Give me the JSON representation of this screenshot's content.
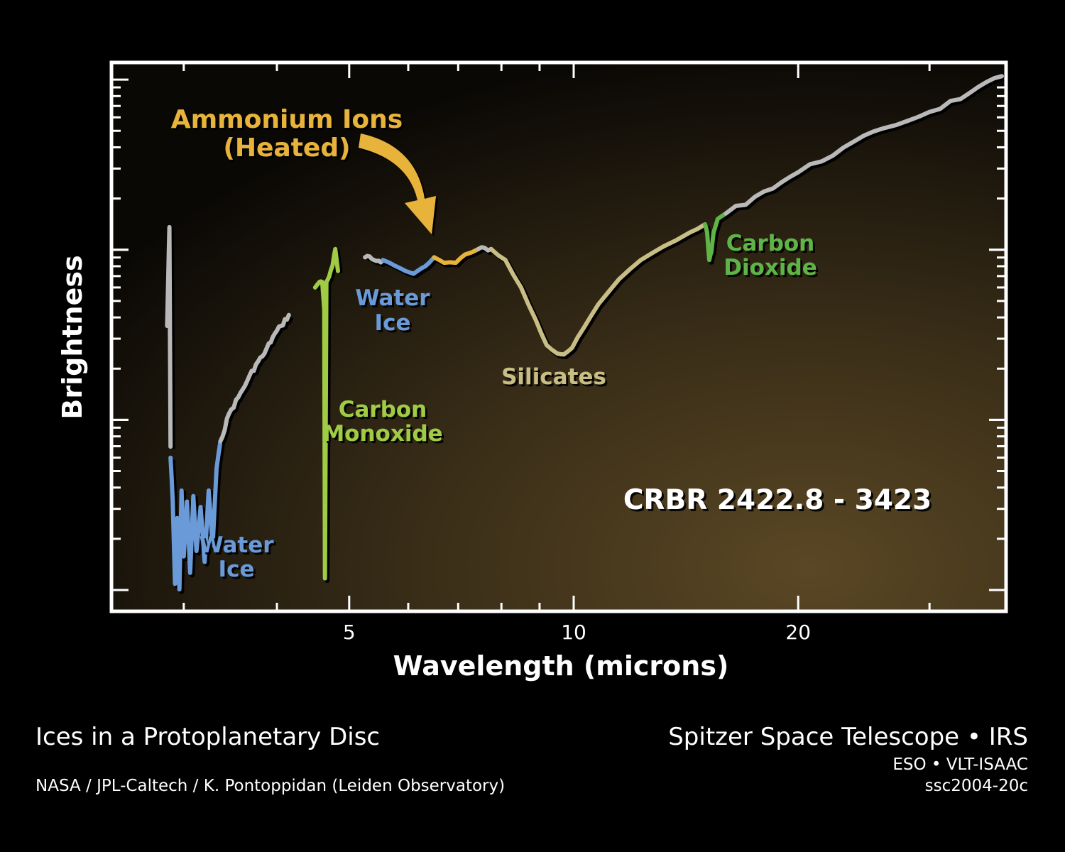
{
  "chart_data": {
    "type": "line",
    "title": "",
    "xlabel": "Wavelength (microns)",
    "ylabel": "Brightness",
    "x_scale": "log",
    "xlim": [
      2.4,
      38
    ],
    "x_ticks": [
      5,
      10,
      20
    ],
    "y_ticks_labeled": false,
    "ylim": [
      0,
      1
    ],
    "grid": false,
    "legend": "none",
    "object_label": "CRBR 2422.8 - 3423",
    "series": [
      {
        "segments": [
          {
            "feature": "continuum",
            "color": "#b9b9b9",
            "points": [
              [
                2.85,
                0.52
              ],
              [
                2.87,
                0.7
              ],
              [
                2.88,
                0.3
              ]
            ]
          },
          {
            "feature": "water_ice",
            "color": "#6a9bd8",
            "points": [
              [
                2.88,
                0.28
              ],
              [
                2.9,
                0.2
              ],
              [
                2.92,
                0.05
              ],
              [
                2.94,
                0.17
              ],
              [
                2.96,
                0.04
              ],
              [
                2.98,
                0.22
              ],
              [
                3.0,
                0.1
              ],
              [
                3.03,
                0.2
              ],
              [
                3.06,
                0.07
              ],
              [
                3.09,
                0.21
              ],
              [
                3.12,
                0.11
              ],
              [
                3.16,
                0.19
              ],
              [
                3.2,
                0.09
              ],
              [
                3.24,
                0.22
              ],
              [
                3.28,
                0.12
              ],
              [
                3.32,
                0.26
              ],
              [
                3.36,
                0.31
              ]
            ]
          },
          {
            "feature": "continuum",
            "color": "#b9b9b9",
            "points": [
              [
                3.36,
                0.31
              ],
              [
                3.45,
                0.36
              ],
              [
                3.55,
                0.39
              ],
              [
                3.65,
                0.42
              ],
              [
                3.75,
                0.45
              ],
              [
                3.85,
                0.47
              ],
              [
                3.95,
                0.5
              ],
              [
                4.05,
                0.52
              ],
              [
                4.15,
                0.54
              ]
            ]
          },
          {
            "feature": "carbon_monoxide",
            "color": "#9fcb45",
            "points": [
              [
                4.5,
                0.59
              ],
              [
                4.56,
                0.6
              ],
              [
                4.6,
                0.6
              ],
              [
                4.63,
                0.55
              ],
              [
                4.64,
                0.06
              ],
              [
                4.66,
                0.6
              ],
              [
                4.7,
                0.61
              ],
              [
                4.75,
                0.63
              ],
              [
                4.79,
                0.66
              ],
              [
                4.83,
                0.62
              ]
            ]
          },
          {
            "feature": "continuum",
            "color": "#b9b9b9",
            "points": [
              [
                5.25,
                0.645
              ],
              [
                5.4,
                0.64
              ],
              [
                5.55,
                0.64
              ]
            ]
          },
          {
            "feature": "water_ice",
            "color": "#6a9bd8",
            "points": [
              [
                5.55,
                0.64
              ],
              [
                5.75,
                0.63
              ],
              [
                5.95,
                0.62
              ],
              [
                6.1,
                0.615
              ],
              [
                6.25,
                0.625
              ],
              [
                6.4,
                0.635
              ],
              [
                6.5,
                0.645
              ]
            ]
          },
          {
            "feature": "ammonium_ions",
            "color": "#e8b33a",
            "points": [
              [
                6.5,
                0.645
              ],
              [
                6.7,
                0.635
              ],
              [
                6.95,
                0.635
              ],
              [
                7.15,
                0.65
              ],
              [
                7.45,
                0.66
              ]
            ]
          },
          {
            "feature": "continuum",
            "color": "#b9b9b9",
            "points": [
              [
                7.45,
                0.66
              ],
              [
                7.75,
                0.66
              ]
            ]
          },
          {
            "feature": "silicates",
            "color": "#c9bd86",
            "points": [
              [
                7.75,
                0.66
              ],
              [
                8.1,
                0.64
              ],
              [
                8.5,
                0.59
              ],
              [
                8.9,
                0.53
              ],
              [
                9.2,
                0.485
              ],
              [
                9.5,
                0.47
              ],
              [
                9.7,
                0.468
              ],
              [
                9.95,
                0.48
              ],
              [
                10.3,
                0.515
              ],
              [
                10.8,
                0.56
              ],
              [
                11.5,
                0.605
              ],
              [
                12.3,
                0.64
              ],
              [
                13.2,
                0.665
              ],
              [
                14.3,
                0.69
              ],
              [
                15.0,
                0.705
              ]
            ]
          },
          {
            "feature": "carbon_dioxide",
            "color": "#5fb447",
            "points": [
              [
                15.0,
                0.705
              ],
              [
                15.1,
                0.69
              ],
              [
                15.2,
                0.64
              ],
              [
                15.3,
                0.655
              ],
              [
                15.4,
                0.69
              ],
              [
                15.6,
                0.715
              ],
              [
                16.0,
                0.725
              ]
            ]
          },
          {
            "feature": "continuum",
            "color": "#b9b9b9",
            "points": [
              [
                16.0,
                0.725
              ],
              [
                18.0,
                0.765
              ],
              [
                20.0,
                0.8
              ],
              [
                23.0,
                0.845
              ],
              [
                26.0,
                0.88
              ],
              [
                30.0,
                0.91
              ],
              [
                34.0,
                0.945
              ],
              [
                37.5,
                0.975
              ]
            ]
          }
        ]
      }
    ],
    "annotations": [
      {
        "text": "Ammonium Ions",
        "color": "#e8b33a"
      },
      {
        "text": "(Heated)",
        "color": "#e8b33a"
      },
      {
        "text": "Water",
        "color": "#6a9bd8"
      },
      {
        "text": "Ice",
        "color": "#6a9bd8"
      },
      {
        "text": "Water",
        "color": "#6a9bd8"
      },
      {
        "text": "Ice",
        "color": "#6a9bd8"
      },
      {
        "text": "Carbon",
        "color": "#9fcb45"
      },
      {
        "text": "Monoxide",
        "color": "#9fcb45"
      },
      {
        "text": "Silicates",
        "color": "#c9bd86"
      },
      {
        "text": "Carbon",
        "color": "#5fb447"
      },
      {
        "text": "Dioxide",
        "color": "#5fb447"
      }
    ]
  },
  "captions": {
    "title": "Ices in a Protoplanetary Disc",
    "credit": "NASA / JPL-Caltech / K. Pontoppidan (Leiden Observatory)",
    "instrument": "Spitzer Space Telescope • IRS",
    "instrument2": "ESO • VLT-ISAAC",
    "id": "ssc2004-20c"
  }
}
